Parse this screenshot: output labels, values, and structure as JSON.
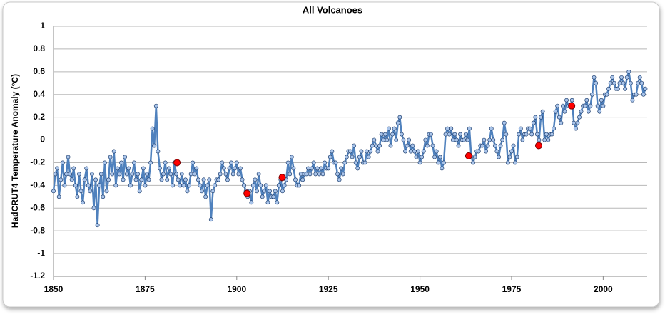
{
  "chart_data": {
    "type": "scatter",
    "title": "All Volcanoes",
    "y_label": "HadCRUT4 Temperature Anomaly (°C)",
    "xlim": [
      1850,
      2012
    ],
    "xticks": [
      1850,
      1875,
      1900,
      1925,
      1950,
      1975,
      2000
    ],
    "ylim": [
      -1.2,
      1
    ],
    "yticks": [
      1,
      0.8,
      0.6,
      0.4,
      0.2,
      0,
      -0.2,
      -0.4,
      -0.6,
      -0.8,
      -1,
      -1.2
    ],
    "grid": true,
    "series": [
      {
        "color": "#4f81bd",
        "marker_color": "#a9c4ea",
        "line": true,
        "x": [
          1850,
          1850.5,
          1851,
          1851.5,
          1852,
          1852.5,
          1853,
          1853.5,
          1854,
          1854.5,
          1855,
          1855.5,
          1856,
          1856.5,
          1857,
          1857.5,
          1858,
          1858.5,
          1859,
          1859.5,
          1860,
          1860.5,
          1861,
          1861.5,
          1862,
          1862.5,
          1863,
          1863.5,
          1864,
          1864.5,
          1865,
          1865.5,
          1866,
          1866.5,
          1867,
          1867.5,
          1868,
          1868.5,
          1869,
          1869.5,
          1870,
          1870.5,
          1871,
          1871.5,
          1872,
          1872.5,
          1873,
          1873.5,
          1874,
          1874.5,
          1875,
          1875.5,
          1876,
          1876.5,
          1877,
          1877.5,
          1878,
          1878.5,
          1879,
          1879.5,
          1880,
          1880.5,
          1881,
          1881.5,
          1882,
          1882.5,
          1883,
          1883.5,
          1884,
          1884.5,
          1885,
          1885.5,
          1886,
          1886.5,
          1887,
          1887.5,
          1888,
          1888.5,
          1889,
          1889.5,
          1890,
          1890.5,
          1891,
          1891.5,
          1892,
          1892.5,
          1893,
          1893.5,
          1894,
          1894.5,
          1895,
          1895.5,
          1896,
          1896.5,
          1897,
          1897.5,
          1898,
          1898.5,
          1899,
          1899.5,
          1900,
          1900.5,
          1901,
          1901.5,
          1902,
          1902.5,
          1903,
          1903.5,
          1904,
          1904.5,
          1905,
          1905.5,
          1906,
          1906.5,
          1907,
          1907.5,
          1908,
          1908.5,
          1909,
          1909.5,
          1910,
          1910.5,
          1911,
          1911.5,
          1912,
          1912.5,
          1913,
          1913.5,
          1914,
          1914.5,
          1915,
          1915.5,
          1916,
          1916.5,
          1917,
          1917.5,
          1918,
          1918.5,
          1919,
          1919.5,
          1920,
          1920.5,
          1921,
          1921.5,
          1922,
          1922.5,
          1923,
          1923.5,
          1924,
          1924.5,
          1925,
          1925.5,
          1926,
          1926.5,
          1927,
          1927.5,
          1928,
          1928.5,
          1929,
          1929.5,
          1930,
          1930.5,
          1931,
          1931.5,
          1932,
          1932.5,
          1933,
          1933.5,
          1934,
          1934.5,
          1935,
          1935.5,
          1936,
          1936.5,
          1937,
          1937.5,
          1938,
          1938.5,
          1939,
          1939.5,
          1940,
          1940.5,
          1941,
          1941.5,
          1942,
          1942.5,
          1943,
          1943.5,
          1944,
          1944.5,
          1945,
          1945.5,
          1946,
          1946.5,
          1947,
          1947.5,
          1948,
          1948.5,
          1949,
          1949.5,
          1950,
          1950.5,
          1951,
          1951.5,
          1952,
          1952.5,
          1953,
          1953.5,
          1954,
          1954.5,
          1955,
          1955.5,
          1956,
          1956.5,
          1957,
          1957.5,
          1958,
          1958.5,
          1959,
          1959.5,
          1960,
          1960.5,
          1961,
          1961.5,
          1962,
          1962.5,
          1963,
          1963.5,
          1964,
          1964.5,
          1965,
          1965.5,
          1966,
          1966.5,
          1967,
          1967.5,
          1968,
          1968.5,
          1969,
          1969.5,
          1970,
          1970.5,
          1971,
          1971.5,
          1972,
          1972.5,
          1973,
          1973.5,
          1974,
          1974.5,
          1975,
          1975.5,
          1976,
          1976.5,
          1977,
          1977.5,
          1978,
          1978.5,
          1979,
          1979.5,
          1980,
          1980.5,
          1981,
          1981.5,
          1982,
          1982.5,
          1983,
          1983.5,
          1984,
          1984.5,
          1985,
          1985.5,
          1986,
          1986.5,
          1987,
          1987.5,
          1988,
          1988.5,
          1989,
          1989.5,
          1990,
          1990.5,
          1991,
          1991.5,
          1992,
          1992.5,
          1993,
          1993.5,
          1994,
          1994.5,
          1995,
          1995.5,
          1996,
          1996.5,
          1997,
          1997.5,
          1998,
          1998.5,
          1999,
          1999.5,
          2000,
          2000.5,
          2001,
          2001.5,
          2002,
          2002.5,
          2003,
          2003.5,
          2004,
          2004.5,
          2005,
          2005.5,
          2006,
          2006.5,
          2007,
          2007.5,
          2008,
          2008.5,
          2009,
          2009.5,
          2010,
          2010.5,
          2011,
          2011.5
        ],
        "values": [
          -0.45,
          -0.3,
          -0.25,
          -0.5,
          -0.35,
          -0.2,
          -0.4,
          -0.3,
          -0.15,
          -0.3,
          -0.35,
          -0.25,
          -0.4,
          -0.5,
          -0.3,
          -0.45,
          -0.55,
          -0.35,
          -0.25,
          -0.4,
          -0.45,
          -0.3,
          -0.6,
          -0.35,
          -0.75,
          -0.4,
          -0.3,
          -0.5,
          -0.2,
          -0.45,
          -0.35,
          -0.15,
          -0.3,
          -0.1,
          -0.4,
          -0.25,
          -0.3,
          -0.2,
          -0.35,
          -0.15,
          -0.3,
          -0.25,
          -0.4,
          -0.3,
          -0.2,
          -0.35,
          -0.3,
          -0.45,
          -0.35,
          -0.25,
          -0.4,
          -0.3,
          -0.35,
          -0.2,
          0.1,
          -0.05,
          0.3,
          -0.1,
          -0.25,
          -0.35,
          -0.3,
          -0.2,
          -0.35,
          -0.25,
          -0.3,
          -0.4,
          -0.2,
          -0.3,
          -0.35,
          -0.4,
          -0.3,
          -0.4,
          -0.35,
          -0.45,
          -0.4,
          -0.3,
          -0.2,
          -0.3,
          -0.25,
          -0.35,
          -0.4,
          -0.45,
          -0.35,
          -0.5,
          -0.4,
          -0.35,
          -0.7,
          -0.45,
          -0.4,
          -0.35,
          -0.35,
          -0.3,
          -0.2,
          -0.25,
          -0.3,
          -0.35,
          -0.25,
          -0.2,
          -0.3,
          -0.25,
          -0.2,
          -0.3,
          -0.25,
          -0.35,
          -0.4,
          -0.45,
          -0.5,
          -0.45,
          -0.55,
          -0.4,
          -0.35,
          -0.45,
          -0.3,
          -0.4,
          -0.5,
          -0.45,
          -0.4,
          -0.55,
          -0.45,
          -0.5,
          -0.5,
          -0.45,
          -0.55,
          -0.4,
          -0.35,
          -0.45,
          -0.4,
          -0.35,
          -0.2,
          -0.3,
          -0.15,
          -0.25,
          -0.35,
          -0.4,
          -0.4,
          -0.3,
          -0.35,
          -0.3,
          -0.3,
          -0.25,
          -0.3,
          -0.25,
          -0.2,
          -0.3,
          -0.25,
          -0.3,
          -0.25,
          -0.3,
          -0.2,
          -0.25,
          -0.25,
          -0.15,
          -0.1,
          -0.2,
          -0.2,
          -0.3,
          -0.35,
          -0.25,
          -0.3,
          -0.2,
          -0.15,
          -0.1,
          -0.1,
          -0.15,
          -0.05,
          -0.2,
          -0.25,
          -0.15,
          -0.1,
          -0.2,
          -0.2,
          -0.1,
          -0.15,
          -0.1,
          -0.05,
          0.0,
          -0.05,
          -0.1,
          -0.05,
          0.05,
          0.0,
          0.05,
          0.0,
          0.1,
          -0.05,
          0.05,
          0.1,
          0.0,
          0.15,
          0.2,
          0.05,
          0.0,
          -0.1,
          -0.05,
          0.0,
          -0.1,
          -0.05,
          -0.1,
          -0.15,
          -0.1,
          -0.2,
          -0.15,
          -0.1,
          0.0,
          -0.05,
          0.05,
          0.05,
          -0.05,
          -0.15,
          -0.1,
          -0.2,
          -0.15,
          -0.25,
          -0.2,
          0.05,
          0.1,
          0.05,
          0.1,
          0.0,
          0.05,
          0.0,
          -0.05,
          0.05,
          0.0,
          0.0,
          0.05,
          0.0,
          0.1,
          -0.15,
          -0.2,
          -0.15,
          -0.1,
          -0.1,
          -0.05,
          -0.05,
          0.0,
          -0.1,
          -0.05,
          0.0,
          0.1,
          0.0,
          -0.05,
          -0.1,
          -0.15,
          -0.05,
          0.0,
          0.15,
          0.05,
          -0.2,
          -0.15,
          -0.1,
          -0.05,
          -0.2,
          -0.15,
          0.05,
          0.1,
          0.0,
          0.05,
          0.05,
          0.1,
          0.1,
          0.05,
          0.15,
          0.2,
          0.05,
          0.0,
          0.2,
          0.25,
          0.0,
          0.05,
          0.0,
          0.05,
          0.05,
          0.1,
          0.25,
          0.3,
          0.2,
          0.15,
          0.3,
          0.25,
          0.35,
          0.3,
          0.3,
          0.35,
          0.15,
          0.1,
          0.15,
          0.2,
          0.25,
          0.3,
          0.3,
          0.35,
          0.25,
          0.3,
          0.4,
          0.55,
          0.5,
          0.3,
          0.25,
          0.35,
          0.3,
          0.4,
          0.4,
          0.45,
          0.5,
          0.55,
          0.5,
          0.45,
          0.45,
          0.5,
          0.55,
          0.5,
          0.45,
          0.55,
          0.6,
          0.5,
          0.35,
          0.4,
          0.4,
          0.5,
          0.55,
          0.5,
          0.4,
          0.45
        ]
      },
      {
        "color": "#ff0000",
        "marker_color": "#ff0000",
        "line": false,
        "x": [
          1883.7,
          1902.8,
          1912.4,
          1963.3,
          1982.4,
          1991.4
        ],
        "values": [
          -0.2,
          -0.47,
          -0.33,
          -0.14,
          -0.05,
          0.3
        ]
      }
    ]
  }
}
